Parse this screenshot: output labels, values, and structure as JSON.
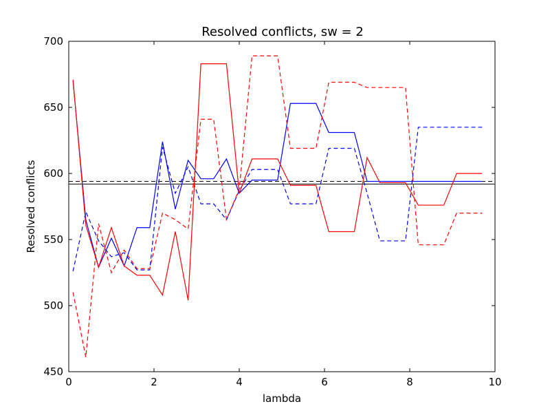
{
  "chart_data": {
    "type": "line",
    "title": "Resolved conflicts, sw = 2",
    "xlabel": "lambda",
    "ylabel": "Resolved conflicts",
    "xlim": [
      0,
      10
    ],
    "ylim": [
      450,
      700
    ],
    "xticks": [
      "0",
      "2",
      "4",
      "6",
      "8",
      "10"
    ],
    "yticks": [
      "450",
      "500",
      "550",
      "600",
      "650",
      "700"
    ],
    "grid": false,
    "legend": "none",
    "series": [
      {
        "color": "#0000ff",
        "style": "solid",
        "x": [
          0.1,
          0.4,
          0.7,
          1.0,
          1.3,
          1.6,
          1.9,
          2.2,
          2.5,
          2.8,
          3.1,
          3.4,
          3.7,
          4.0,
          4.3,
          4.6,
          4.9,
          5.2,
          5.5,
          5.8,
          6.1,
          6.4,
          6.7,
          7.0,
          7.3,
          7.6,
          7.9,
          8.2,
          8.5,
          8.8,
          9.1,
          9.4,
          9.7
        ],
        "values": [
          670,
          565,
          529,
          551,
          530,
          559,
          559,
          624,
          573,
          610,
          596,
          596,
          611,
          585,
          595,
          595,
          595,
          653,
          653,
          653,
          631,
          631,
          631,
          594,
          594,
          594,
          594,
          594,
          594,
          594,
          594,
          594,
          594
        ]
      },
      {
        "color": "#0000ff",
        "style": "dashed",
        "x": [
          0.1,
          0.4,
          0.7,
          1.0,
          1.3,
          1.6,
          1.9,
          2.2,
          2.5,
          2.8,
          3.1,
          3.4,
          3.7,
          4.0,
          4.3,
          4.6,
          4.9,
          5.2,
          5.5,
          5.8,
          6.1,
          6.4,
          6.7,
          7.0,
          7.3,
          7.6,
          7.9,
          8.2,
          8.5,
          8.8,
          9.1,
          9.4,
          9.7
        ],
        "values": [
          526,
          571,
          549,
          537,
          540,
          527,
          527,
          620,
          585,
          605,
          577,
          577,
          565,
          587,
          603,
          603,
          603,
          577,
          577,
          577,
          619,
          619,
          619,
          585,
          549,
          549,
          549,
          635,
          635,
          635,
          635,
          635,
          635
        ]
      },
      {
        "color": "#ff0000",
        "style": "solid",
        "x": [
          0.1,
          0.4,
          0.7,
          1.0,
          1.3,
          1.6,
          1.9,
          2.2,
          2.5,
          2.8,
          3.1,
          3.4,
          3.7,
          4.0,
          4.3,
          4.6,
          4.9,
          5.2,
          5.5,
          5.8,
          6.1,
          6.4,
          6.7,
          7.0,
          7.3,
          7.6,
          7.9,
          8.2,
          8.5,
          8.8,
          9.1,
          9.4,
          9.7
        ],
        "values": [
          671,
          561,
          529,
          559,
          530,
          523,
          523,
          508,
          556,
          504,
          683,
          683,
          683,
          585,
          611,
          611,
          611,
          591,
          591,
          591,
          556,
          556,
          556,
          612,
          593,
          593,
          593,
          576,
          576,
          576,
          600,
          600,
          600
        ]
      },
      {
        "color": "#ff0000",
        "style": "dashed",
        "x": [
          0.1,
          0.4,
          0.7,
          1.0,
          1.3,
          1.6,
          1.9,
          2.2,
          2.5,
          2.8,
          3.1,
          3.4,
          3.7,
          4.0,
          4.3,
          4.6,
          4.9,
          5.2,
          5.5,
          5.8,
          6.1,
          6.4,
          6.7,
          7.0,
          7.3,
          7.6,
          7.9,
          8.2,
          8.5,
          8.8,
          9.1,
          9.4,
          9.7
        ],
        "values": [
          510,
          461,
          562,
          525,
          542,
          528,
          528,
          570,
          565,
          558,
          641,
          641,
          565,
          588,
          689,
          689,
          689,
          619,
          619,
          619,
          669,
          669,
          669,
          665,
          665,
          665,
          665,
          546,
          546,
          546,
          570,
          570,
          570
        ]
      }
    ],
    "hlines": [
      {
        "y": 594,
        "color": "#000000",
        "style": "dashed"
      },
      {
        "y": 592,
        "color": "#000000",
        "style": "solid"
      }
    ]
  }
}
